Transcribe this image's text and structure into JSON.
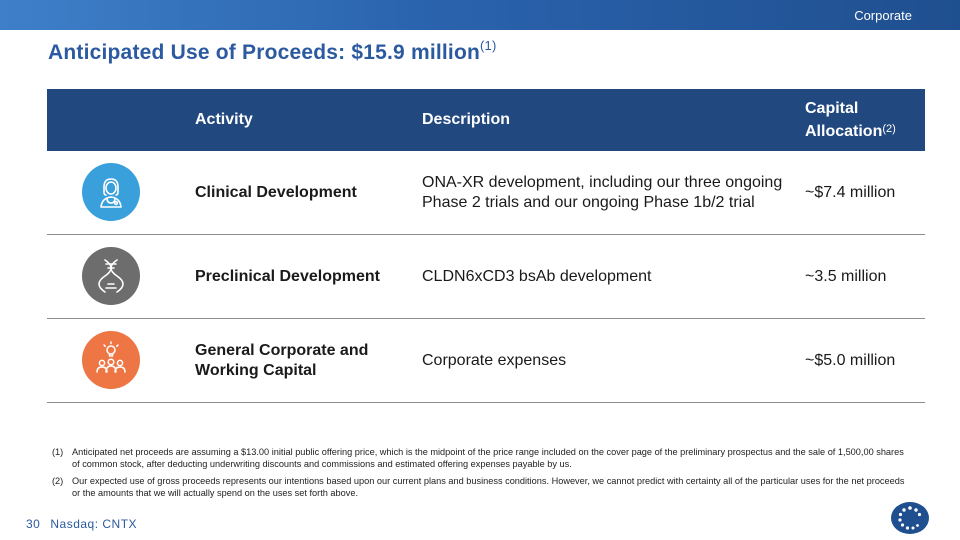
{
  "header": {
    "section": "Corporate"
  },
  "title": {
    "text": "Anticipated Use of Proceeds: $15.9 million",
    "superscript": "(1)"
  },
  "table": {
    "headers": {
      "activity": "Activity",
      "description": "Description",
      "capital_line1": "Capital",
      "capital_line2": "Allocation",
      "capital_sup": "(2)"
    },
    "rows": [
      {
        "icon": "clinician-icon",
        "icon_color": "#3aa0dc",
        "activity": "Clinical Development",
        "description": "ONA-XR development, including our three ongoing Phase 2 trials and our ongoing Phase 1b/2 trial",
        "allocation": "~$7.4 million"
      },
      {
        "icon": "dna-icon",
        "icon_color": "#6d6d6d",
        "activity": "Preclinical Development",
        "description": "CLDN6xCD3 bsAb development",
        "allocation": "~3.5 million"
      },
      {
        "icon": "team-idea-icon",
        "icon_color": "#ee7544",
        "activity": "General Corporate and Working Capital",
        "description": "Corporate expenses",
        "allocation": "~$5.0 million"
      }
    ]
  },
  "footnotes": [
    {
      "num": "(1)",
      "text": "Anticipated net proceeds are assuming a $13.00 initial public offering price, which is the midpoint of the price range included on the cover page of the preliminary prospectus and the sale of 1,500,00 shares of common stock, after deducting underwriting discounts and commissions and estimated offering expenses payable by us."
    },
    {
      "num": "(2)",
      "text": "Our expected use of gross proceeds represents our intentions based upon our current plans and business conditions. However, we cannot predict with certainty all of the particular uses for the net proceeds or the amounts that we will actually spend on the uses set forth above."
    }
  ],
  "footer": {
    "page": "30",
    "ticker": "Nasdaq: CNTX"
  },
  "colors": {
    "brand": "#2b5aa0",
    "header_fill": "#22497f"
  }
}
